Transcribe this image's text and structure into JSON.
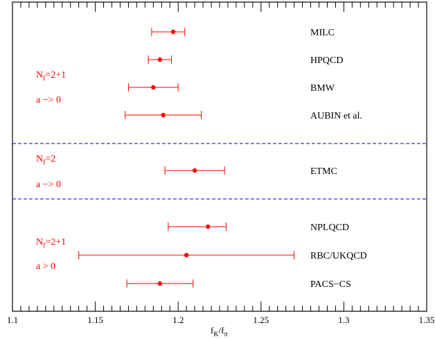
{
  "chart_data": {
    "type": "scatter",
    "orientation": "horizontal-errorbars",
    "xlabel": {
      "main": "f",
      "sub1": "K",
      "sep": "/f",
      "sub2": "π"
    },
    "xlim": [
      1.1,
      1.35
    ],
    "x_ticks": [
      1.1,
      1.15,
      1.2,
      1.25,
      1.3,
      1.35
    ],
    "x_tick_labels": [
      "1.1",
      "1.15",
      "1.2",
      "1.25",
      "1.3",
      "1.35"
    ],
    "grid": false,
    "point_color": "#ff0000",
    "separator_color": "#0000cc",
    "points": [
      {
        "label": "MILC",
        "value": 1.197,
        "low": 1.184,
        "high": 1.204
      },
      {
        "label": "HPQCD",
        "value": 1.189,
        "low": 1.182,
        "high": 1.196
      },
      {
        "label": "BMW",
        "value": 1.185,
        "low": 1.17,
        "high": 1.2
      },
      {
        "label": "AUBIN et al.",
        "value": 1.191,
        "low": 1.168,
        "high": 1.214
      },
      {
        "label": "ETMC",
        "value": 1.21,
        "low": 1.192,
        "high": 1.228
      },
      {
        "label": "NPLQCD",
        "value": 1.218,
        "low": 1.194,
        "high": 1.229
      },
      {
        "label": "RBC/UKQCD",
        "value": 1.205,
        "low": 1.14,
        "high": 1.27
      },
      {
        "label": "PACS−CS",
        "value": 1.189,
        "low": 1.169,
        "high": 1.209
      }
    ],
    "groups": [
      {
        "line1_main": "N",
        "line1_sub": "f",
        "line1_rest": "=2+1",
        "line2": "a −> 0"
      },
      {
        "line1_main": "N",
        "line1_sub": "f",
        "line1_rest": "=2",
        "line2": "a −> 0"
      },
      {
        "line1_main": "N",
        "line1_sub": "f",
        "line1_rest": "=2+1",
        "line2": "a > 0"
      }
    ]
  }
}
